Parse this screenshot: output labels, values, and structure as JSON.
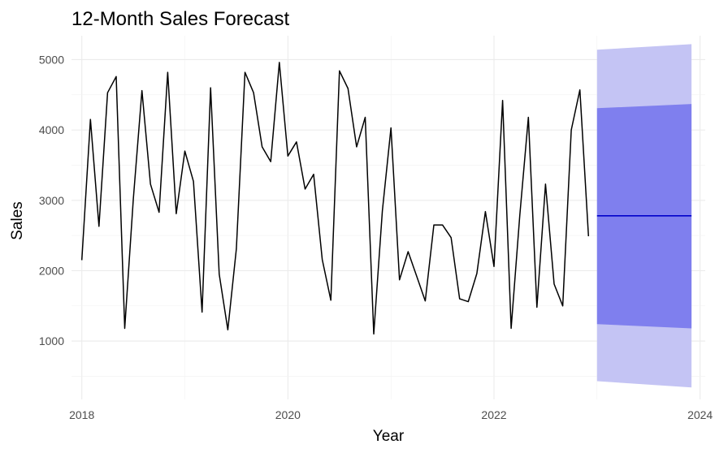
{
  "chart_data": {
    "type": "line",
    "title": "12-Month Sales Forecast",
    "xlabel": "Year",
    "ylabel": "Sales",
    "xlim": [
      2017.9,
      2024.05
    ],
    "ylim": [
      170,
      5340
    ],
    "x_ticks": [
      2018,
      2020,
      2022,
      2024
    ],
    "y_ticks": [
      1000,
      2000,
      3000,
      4000,
      5000
    ],
    "grid": true,
    "legend": "none",
    "series": [
      {
        "role": "observed",
        "color": "#000000",
        "start": "2018-01",
        "frequency": "monthly",
        "values": [
          2150,
          4150,
          2630,
          4530,
          4760,
          1180,
          3020,
          4560,
          3230,
          2830,
          4820,
          2810,
          3700,
          3270,
          1410,
          4600,
          1950,
          1160,
          2310,
          4820,
          4530,
          3760,
          3550,
          4960,
          3630,
          3830,
          3160,
          3370,
          2160,
          1580,
          4840,
          4590,
          3760,
          4180,
          1100,
          2850,
          4030,
          1870,
          2270,
          1920,
          1570,
          2650,
          2650,
          2470,
          1600,
          1560,
          1960,
          2840,
          2060,
          4420,
          1180,
          2780,
          4180,
          1480,
          3230,
          1810,
          1500,
          4000,
          4570,
          2490
        ]
      },
      {
        "role": "forecast",
        "color": "#0000cc",
        "start": "2023-01",
        "frequency": "monthly",
        "values": [
          2780,
          2780,
          2780,
          2780,
          2780,
          2780,
          2780,
          2780,
          2780,
          2780,
          2780,
          2780
        ],
        "band_80": {
          "color": "#7f7fee",
          "lower": [
            1240,
            1180
          ],
          "upper": [
            4310,
            4370
          ]
        },
        "band_95": {
          "color": "#c4c4f4",
          "lower": [
            430,
            340
          ],
          "upper": [
            5140,
            5220
          ]
        }
      }
    ]
  }
}
